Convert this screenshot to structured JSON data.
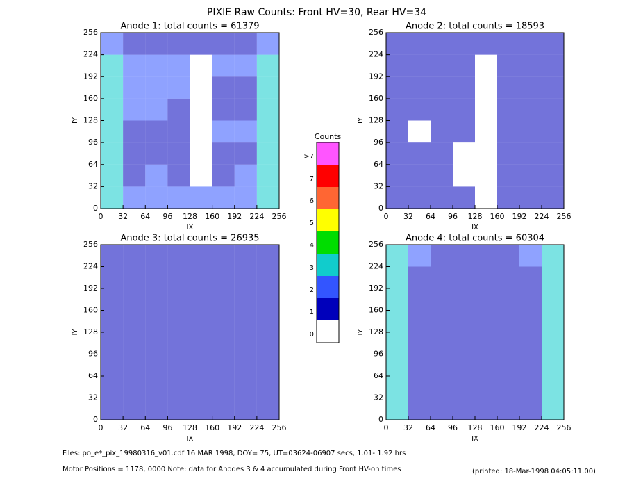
{
  "title": "PIXIE Raw Counts:  Front HV=30, Rear HV=34",
  "footer": {
    "files": "Files: po_e*_pix_19980316_v01.cdf    16 MAR 1998, DOY= 75, UT=03624-06907 secs,  1.01- 1.92 hrs",
    "motor": "Motor Positions = 1178, 0000   Note: data for Anodes 3 & 4 accumulated during Front HV-on times",
    "printed": "(printed: 18-Mar-1998 04:05:11.00)"
  },
  "colorbar": {
    "title": "Counts",
    "levels": [
      0,
      1,
      2,
      3,
      4,
      5,
      6,
      7,
      {
        "value": 8,
        "label": ">7"
      }
    ],
    "colors": [
      "#ffffff",
      "#0000bb",
      "#3355ff",
      "#11cccc",
      "#00dd00",
      "#ffff00",
      "#ff6633",
      "#ff0000",
      "#ff55ff"
    ]
  },
  "chart_data": [
    {
      "type": "heatmap",
      "title": "Anode 1: total counts = 61379",
      "xlabel": "IX",
      "ylabel": "IY",
      "xlim": [
        0,
        256
      ],
      "ylim": [
        0,
        256
      ],
      "xticks": [
        0,
        32,
        64,
        96,
        128,
        160,
        192,
        224,
        256
      ],
      "yticks": [
        0,
        32,
        64,
        96,
        128,
        160,
        192,
        224,
        256
      ],
      "values": [
        [
          3,
          2,
          2,
          2,
          2,
          2,
          2,
          3
        ],
        [
          3,
          1,
          2,
          1,
          0,
          1,
          2,
          3
        ],
        [
          3,
          1,
          1,
          1,
          0,
          1,
          1,
          3
        ],
        [
          3,
          1,
          1,
          1,
          0,
          2,
          2,
          3
        ],
        [
          3,
          2,
          2,
          1,
          0,
          1,
          1,
          3
        ],
        [
          3,
          2,
          2,
          2,
          0,
          1,
          1,
          3
        ],
        [
          3,
          2,
          2,
          2,
          0,
          2,
          2,
          3
        ],
        [
          2,
          1,
          1,
          1,
          1,
          1,
          1,
          2
        ]
      ]
    },
    {
      "type": "heatmap",
      "title": "Anode 2: total counts = 18593",
      "xlabel": "IX",
      "ylabel": "IY",
      "xlim": [
        0,
        256
      ],
      "ylim": [
        0,
        256
      ],
      "xticks": [
        0,
        32,
        64,
        96,
        128,
        160,
        192,
        224,
        256
      ],
      "yticks": [
        0,
        32,
        64,
        96,
        128,
        160,
        192,
        224,
        256
      ],
      "values": [
        [
          1,
          1,
          1,
          1,
          0,
          1,
          1,
          1
        ],
        [
          1,
          1,
          1,
          0,
          0,
          1,
          1,
          1
        ],
        [
          1,
          1,
          1,
          0,
          0,
          1,
          1,
          1
        ],
        [
          1,
          0,
          1,
          1,
          0,
          1,
          1,
          1
        ],
        [
          1,
          1,
          1,
          1,
          0,
          1,
          1,
          1
        ],
        [
          1,
          1,
          1,
          1,
          0,
          1,
          1,
          1
        ],
        [
          1,
          1,
          1,
          1,
          0,
          1,
          1,
          1
        ],
        [
          1,
          1,
          1,
          1,
          1,
          1,
          1,
          1
        ]
      ]
    },
    {
      "type": "heatmap",
      "title": "Anode 3: total counts = 26935",
      "xlabel": "IX",
      "ylabel": "IY",
      "xlim": [
        0,
        256
      ],
      "ylim": [
        0,
        256
      ],
      "xticks": [
        0,
        32,
        64,
        96,
        128,
        160,
        192,
        224,
        256
      ],
      "yticks": [
        0,
        32,
        64,
        96,
        128,
        160,
        192,
        224,
        256
      ],
      "values": [
        [
          1,
          1,
          1,
          1,
          1,
          1,
          1,
          1
        ],
        [
          1,
          1,
          1,
          1,
          1,
          1,
          1,
          1
        ],
        [
          1,
          1,
          1,
          1,
          1,
          1,
          1,
          1
        ],
        [
          1,
          1,
          1,
          1,
          1,
          1,
          1,
          1
        ],
        [
          1,
          1,
          1,
          1,
          1,
          1,
          1,
          1
        ],
        [
          1,
          1,
          1,
          1,
          1,
          1,
          1,
          1
        ],
        [
          1,
          1,
          1,
          1,
          1,
          1,
          1,
          1
        ],
        [
          1,
          1,
          1,
          1,
          1,
          1,
          1,
          1
        ]
      ]
    },
    {
      "type": "heatmap",
      "title": "Anode 4: total counts = 60304",
      "xlabel": "IX",
      "ylabel": "IY",
      "xlim": [
        0,
        256
      ],
      "ylim": [
        0,
        256
      ],
      "xticks": [
        0,
        32,
        64,
        96,
        128,
        160,
        192,
        224,
        256
      ],
      "yticks": [
        0,
        32,
        64,
        96,
        128,
        160,
        192,
        224,
        256
      ],
      "values": [
        [
          3,
          1,
          1,
          1,
          1,
          1,
          1,
          3
        ],
        [
          3,
          1,
          1,
          1,
          1,
          1,
          1,
          3
        ],
        [
          3,
          1,
          1,
          1,
          1,
          1,
          1,
          3
        ],
        [
          3,
          1,
          1,
          1,
          1,
          1,
          1,
          3
        ],
        [
          3,
          1,
          1,
          1,
          1,
          1,
          1,
          3
        ],
        [
          3,
          1,
          1,
          1,
          1,
          1,
          1,
          3
        ],
        [
          3,
          1,
          1,
          1,
          1,
          1,
          1,
          3
        ],
        [
          3,
          2,
          1,
          1,
          1,
          1,
          2,
          3
        ]
      ]
    }
  ]
}
